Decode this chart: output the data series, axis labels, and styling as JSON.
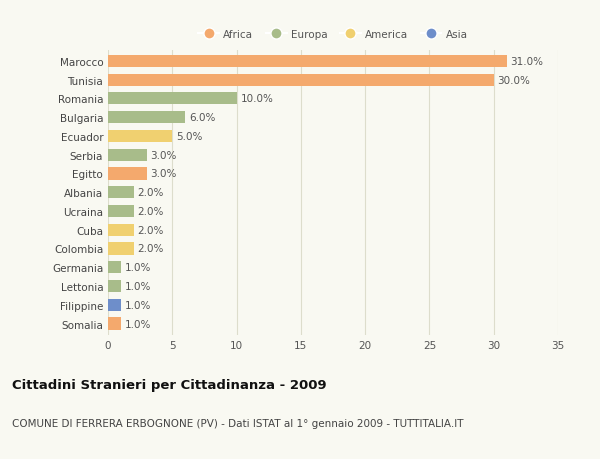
{
  "countries": [
    "Marocco",
    "Tunisia",
    "Romania",
    "Bulgaria",
    "Ecuador",
    "Serbia",
    "Egitto",
    "Albania",
    "Ucraina",
    "Cuba",
    "Colombia",
    "Germania",
    "Lettonia",
    "Filippine",
    "Somalia"
  ],
  "values": [
    31.0,
    30.0,
    10.0,
    6.0,
    5.0,
    3.0,
    3.0,
    2.0,
    2.0,
    2.0,
    2.0,
    1.0,
    1.0,
    1.0,
    1.0
  ],
  "continents": [
    "Africa",
    "Africa",
    "Europa",
    "Europa",
    "America",
    "Europa",
    "Africa",
    "Europa",
    "Europa",
    "America",
    "America",
    "Europa",
    "Europa",
    "Asia",
    "Africa"
  ],
  "continent_colors": {
    "Africa": "#F4A96D",
    "Europa": "#A8BC8A",
    "America": "#F0D070",
    "Asia": "#6E8ECA"
  },
  "legend_order": [
    "Africa",
    "Europa",
    "America",
    "Asia"
  ],
  "title": "Cittadini Stranieri per Cittadinanza - 2009",
  "subtitle": "COMUNE DI FERRERA ERBOGNONE (PV) - Dati ISTAT al 1° gennaio 2009 - TUTTITALIA.IT",
  "xlim": [
    0,
    35
  ],
  "xticks": [
    0,
    5,
    10,
    15,
    20,
    25,
    30,
    35
  ],
  "background_color": "#F9F9F2",
  "grid_color": "#DDDDCC",
  "bar_height": 0.65,
  "label_fontsize": 7.5,
  "title_fontsize": 9.5,
  "subtitle_fontsize": 7.5
}
